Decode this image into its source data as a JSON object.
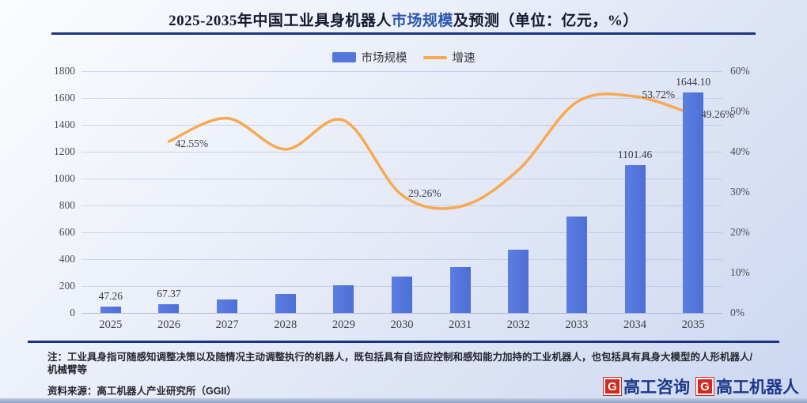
{
  "title": {
    "prefix": "2025-2035年中国工业具身机器人",
    "highlight": "市场规模",
    "suffix": "及预测（单位：亿元，%）"
  },
  "legend": {
    "items": [
      {
        "label": "市场规模",
        "marker": "bar",
        "color": "#5377DC"
      },
      {
        "label": "增速",
        "marker": "line",
        "color": "#F8A950"
      }
    ],
    "position": "top-center"
  },
  "chart_data": {
    "type": "bar+line",
    "title": "2025-2035年中国工业具身机器人市场规模及预测（单位：亿元，%）",
    "categories": [
      "2025",
      "2026",
      "2027",
      "2028",
      "2029",
      "2030",
      "2031",
      "2032",
      "2033",
      "2034",
      "2035"
    ],
    "series": [
      {
        "name": "市场规模",
        "type": "bar",
        "axis": "left",
        "unit": "亿元",
        "color": "#5377DC",
        "values": [
          47.26,
          67.37,
          98,
          140,
          208,
          268,
          340,
          470,
          716,
          1101.46,
          1644.1
        ],
        "value_labels": {
          "0": "47.26",
          "1": "67.37",
          "9": "1101.46",
          "10": "1644.10"
        }
      },
      {
        "name": "增速",
        "type": "line",
        "axis": "right",
        "unit": "%",
        "color": "#F8A950",
        "smooth": true,
        "values": [
          null,
          42.55,
          48.3,
          40.6,
          47.8,
          29.26,
          26.4,
          35.5,
          52.3,
          53.72,
          49.26
        ],
        "value_labels": {
          "1": "42.55%",
          "5": "29.26%",
          "9": "53.72%",
          "10": "49.26%"
        }
      }
    ],
    "left_axis": {
      "min": 0,
      "max": 1800,
      "step": 200,
      "ticks": [
        "0",
        "200",
        "400",
        "600",
        "800",
        "1000",
        "1200",
        "1400",
        "1600",
        "1800"
      ]
    },
    "right_axis": {
      "min": 0,
      "max": 60,
      "step": 10,
      "ticks": [
        "0%",
        "10%",
        "20%",
        "30%",
        "40%",
        "50%",
        "60%"
      ]
    },
    "grid": true,
    "legend_position": "top"
  },
  "footnote": {
    "label": "注：",
    "text": "工业具身指可随感知调整决策以及随情况主动调整执行的机器人，既包括具有自适应控制和感知能力加持的工业机器人，也包括具有具身大模型的人形机器人/机械臂等"
  },
  "source": {
    "label": "资料来源：",
    "text": "高工机器人产业研究所（GGII）"
  },
  "logos": {
    "items": [
      {
        "badge": "G",
        "text": "高工咨询",
        "badge_color": "#D3291F",
        "text_color": "#1D3787"
      },
      {
        "badge": "G",
        "text": "高工机器人",
        "badge_color": "#D3291F",
        "text_color": "#1D3787"
      }
    ]
  }
}
